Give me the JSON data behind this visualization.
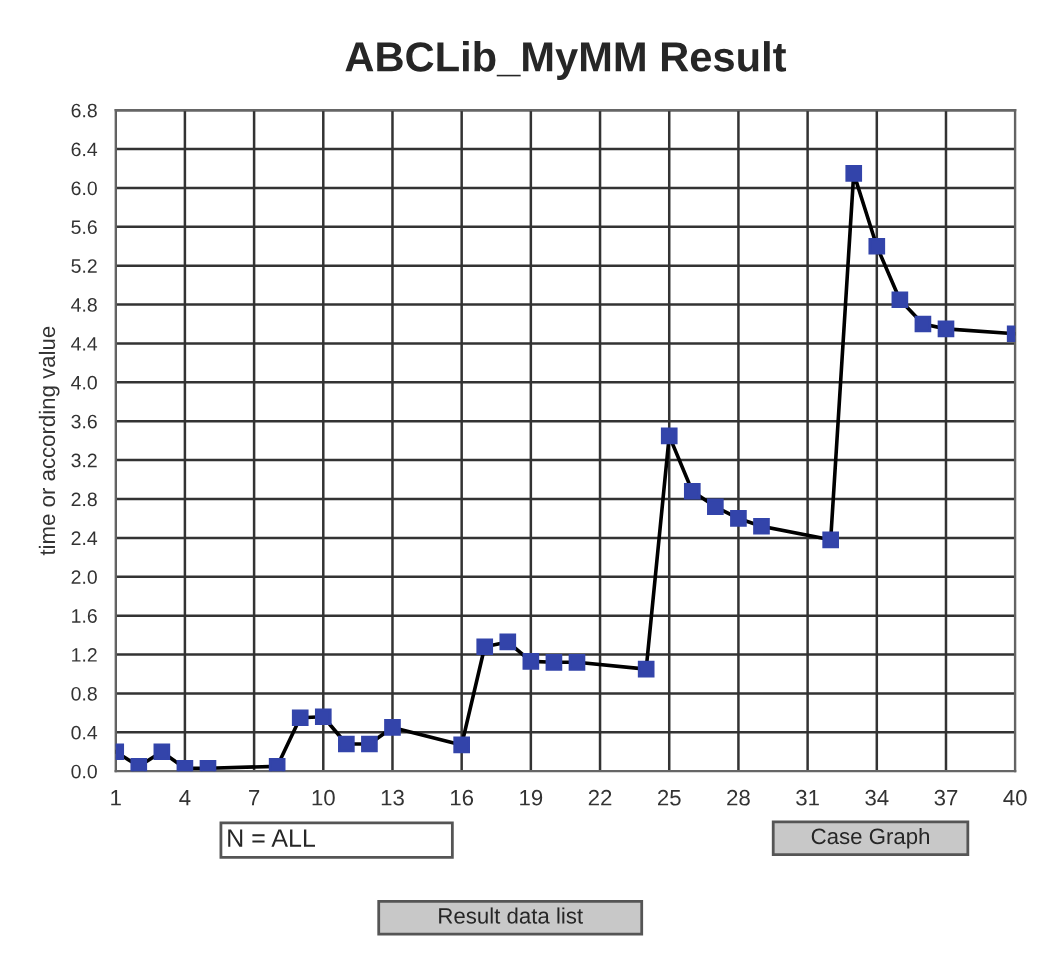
{
  "chart_data": {
    "type": "line",
    "title": "ABCLib_MyMM Result",
    "ylabel": "time or according value",
    "x": [
      1,
      2,
      3,
      4,
      5,
      8,
      9,
      10,
      11,
      12,
      13,
      16,
      17,
      18,
      19,
      20,
      21,
      24,
      25,
      26,
      27,
      28,
      29,
      32,
      33,
      34,
      35,
      36,
      37,
      40
    ],
    "series": [
      {
        "color": "#3344aa",
        "values": [
          0.2,
          0.05,
          0.2,
          0.03,
          0.03,
          0.05,
          0.55,
          0.56,
          0.28,
          0.28,
          0.45,
          0.27,
          1.28,
          1.33,
          1.13,
          1.12,
          1.12,
          1.05,
          3.45,
          2.88,
          2.72,
          2.6,
          2.52,
          2.38,
          6.15,
          5.4,
          4.85,
          4.6,
          4.55,
          4.5
        ]
      }
    ],
    "xlim": [
      1,
      40
    ],
    "xticks": [
      1,
      4,
      7,
      10,
      13,
      16,
      19,
      22,
      25,
      28,
      31,
      34,
      37,
      40
    ],
    "ylim": [
      0,
      6.8
    ],
    "yticks": [
      {
        "value": 0,
        "label": "0.0"
      },
      {
        "value": 0.4,
        "label": "0.4"
      },
      {
        "value": 0.8,
        "label": "0.8"
      },
      {
        "value": 1.2,
        "label": "1.2"
      },
      {
        "value": 1.6,
        "label": "1.6"
      },
      {
        "value": 2.0,
        "label": "2.0"
      },
      {
        "value": 2.4,
        "label": "2.4"
      },
      {
        "value": 2.8,
        "label": "2.8"
      },
      {
        "value": 3.2,
        "label": "3.2"
      },
      {
        "value": 3.6,
        "label": "3.6"
      },
      {
        "value": 4.0,
        "label": "4.0"
      },
      {
        "value": 4.4,
        "label": "4.4"
      },
      {
        "value": 4.8,
        "label": "4.8"
      },
      {
        "value": 5.2,
        "label": "5.2"
      },
      {
        "value": 5.6,
        "label": "5.6"
      },
      {
        "value": 6.0,
        "label": "6.0"
      },
      {
        "value": 6.4,
        "label": "6.4"
      },
      {
        "value": 6.8,
        "label": "6.8"
      }
    ],
    "grid": true,
    "marker": "square",
    "line_style": "solid",
    "annotations": [
      "N = ALL",
      "Case Graph",
      "Result data list"
    ]
  }
}
